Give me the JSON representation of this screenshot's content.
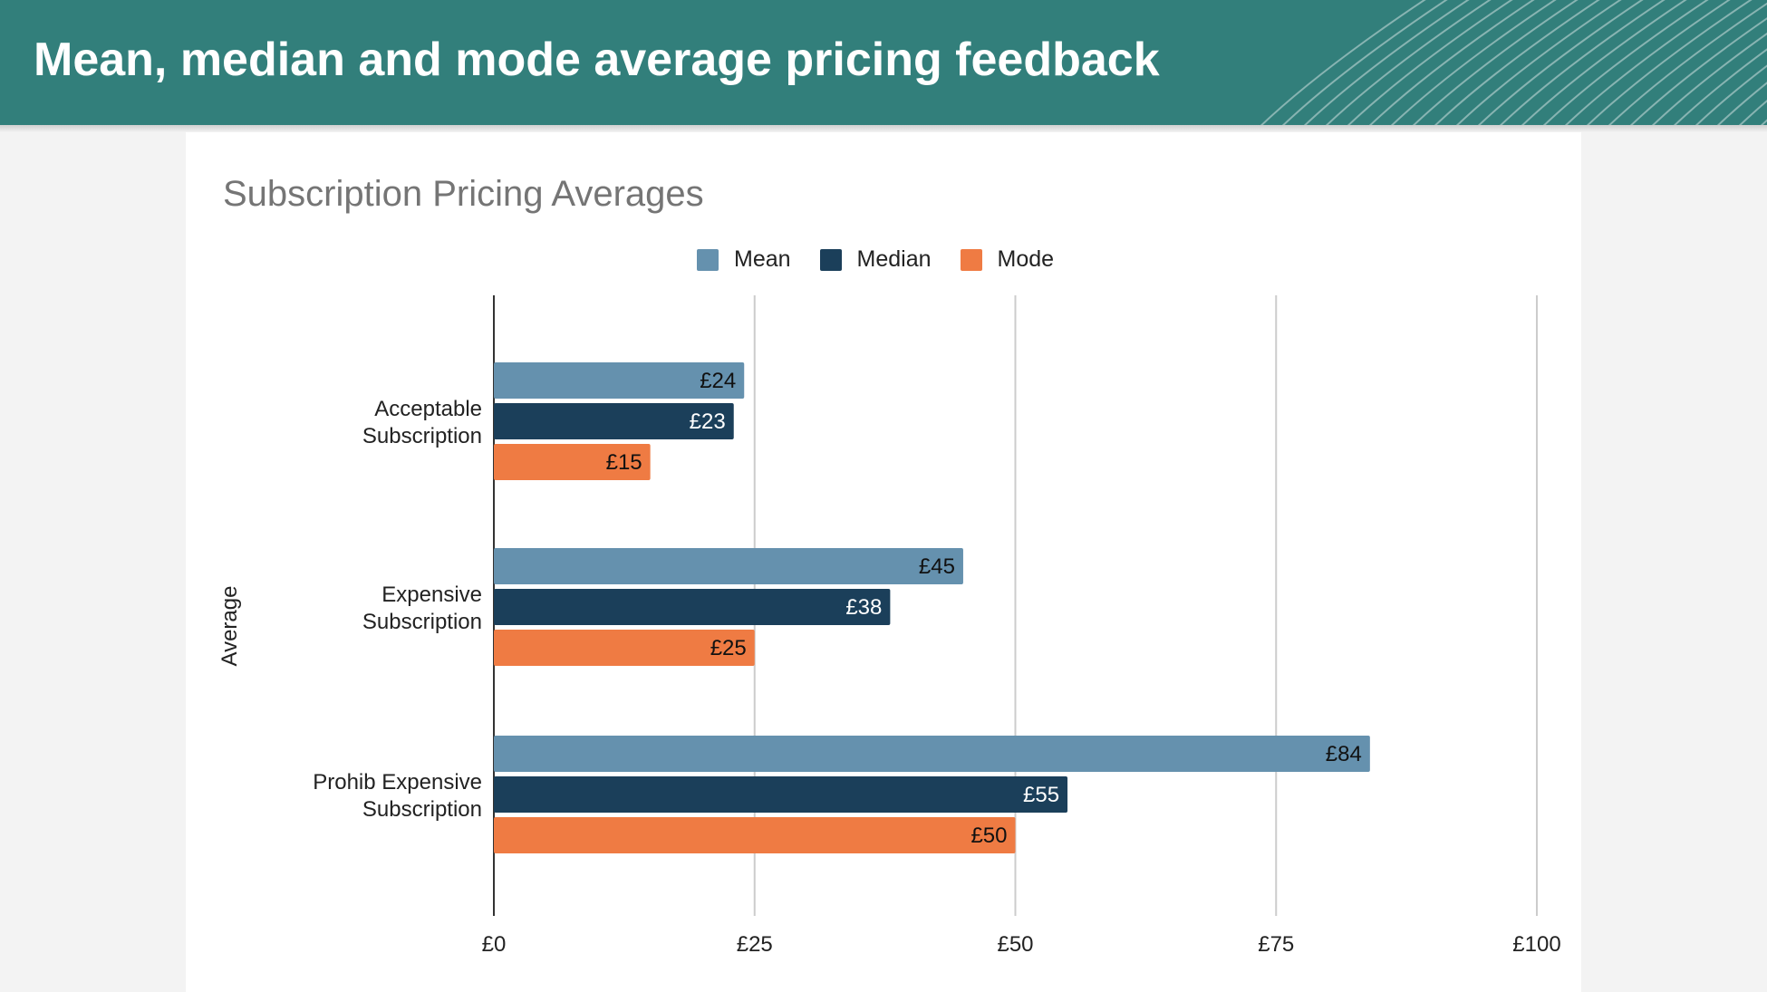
{
  "page": {
    "title": "Mean, median and mode average pricing feedback"
  },
  "colors": {
    "header": "#327f7b",
    "mean": "#6591ae",
    "median": "#1b3f5a",
    "mode": "#ef7b43"
  },
  "chart_data": {
    "type": "bar",
    "orientation": "horizontal",
    "title": "Subscription Pricing Averages",
    "ylabel": "Average",
    "xlabel": "",
    "categories": [
      [
        "Acceptable",
        "Subscription"
      ],
      [
        "Expensive",
        "Subscription"
      ],
      [
        "Prohib Expensive",
        "Subscription"
      ]
    ],
    "series": [
      {
        "name": "Mean",
        "values": [
          24,
          45,
          84
        ],
        "labels": [
          "£24",
          "£45",
          "£84"
        ],
        "color": "#6591ae",
        "label_color": "#111111"
      },
      {
        "name": "Median",
        "values": [
          23,
          38,
          55
        ],
        "labels": [
          "£23",
          "£38",
          "£55"
        ],
        "color": "#1b3f5a",
        "label_color": "#ffffff"
      },
      {
        "name": "Mode",
        "values": [
          15,
          25,
          50
        ],
        "labels": [
          "£15",
          "£25",
          "£50"
        ],
        "color": "#ef7b43",
        "label_color": "#111111"
      }
    ],
    "xlim": [
      0,
      100
    ],
    "xticks": [
      0,
      25,
      50,
      75,
      100
    ],
    "xtick_labels": [
      "£0",
      "£25",
      "£50",
      "£75",
      "£100"
    ],
    "grid": true,
    "legend_position": "top-center"
  }
}
